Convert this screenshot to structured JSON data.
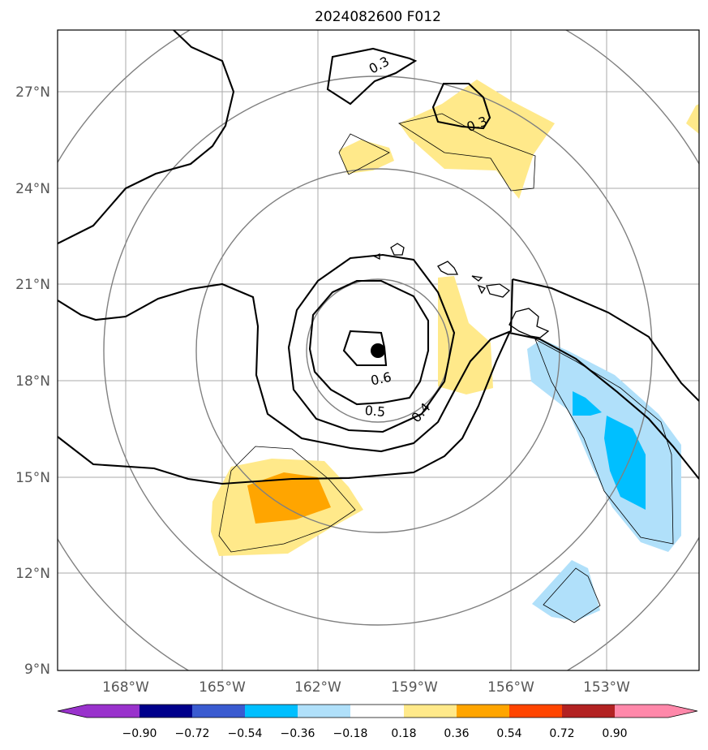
{
  "title": "2024082600 F012",
  "map": {
    "lon_ticks": [
      "168°W",
      "165°W",
      "162°W",
      "159°W",
      "156°W",
      "153°W"
    ],
    "lat_ticks": [
      "27°N",
      "24°N",
      "21°N",
      "18°N",
      "15°N",
      "12°N",
      "9°N"
    ],
    "storm_center": {
      "lat": 18.9,
      "lon": -160.2
    },
    "range_rings": "concentric gray circles centered on storm",
    "contour_labels": [
      "0.3",
      "0.3",
      "0.6",
      "0.5",
      "0.4"
    ]
  },
  "colorbar": {
    "ticks": [
      "−0.90",
      "−0.72",
      "−0.54",
      "−0.36",
      "−0.18",
      "0.18",
      "0.36",
      "0.54",
      "0.72",
      "0.90"
    ],
    "colors": [
      "#9932cc",
      "#00008b",
      "#3a5bd0",
      "#00bfff",
      "#b0e0fa",
      "#ffffff",
      "#ffe98a",
      "#ffa500",
      "#ff4500",
      "#b22222",
      "#ff88aa"
    ]
  }
}
